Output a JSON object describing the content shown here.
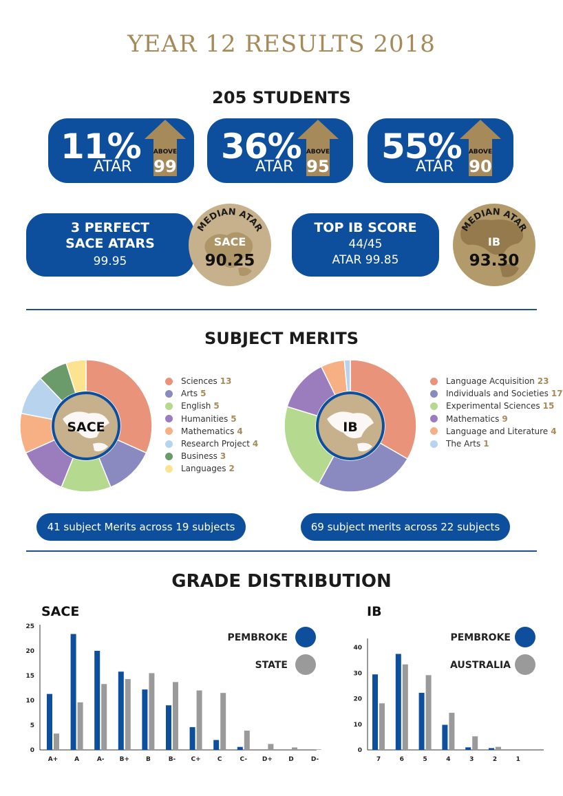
{
  "title": "YEAR 12 RESULTS 2018",
  "students_heading": "205 STUDENTS",
  "stats": [
    {
      "percent": "11%",
      "atar_label": "ATAR",
      "above_label": "ABOVE",
      "threshold": "99"
    },
    {
      "percent": "36%",
      "atar_label": "ATAR",
      "above_label": "ABOVE",
      "threshold": "95"
    },
    {
      "percent": "55%",
      "atar_label": "ATAR",
      "above_label": "ABOVE",
      "threshold": "90"
    }
  ],
  "sace_perfect": {
    "line1": "3 PERFECT",
    "line2": "SACE ATARS",
    "value": "99.95"
  },
  "median_sace": {
    "arc_label": "MEDIAN ATAR",
    "program": "SACE",
    "value": "90.25"
  },
  "top_ib": {
    "line1": "TOP IB SCORE",
    "line2": "44/45",
    "line3": "ATAR 99.85"
  },
  "median_ib": {
    "arc_label": "MEDIAN ATAR",
    "program": "IB",
    "value": "93.30"
  },
  "merits_heading": "SUBJECT MERITS",
  "grade_heading": "GRADE DISTRIBUTION",
  "colors": {
    "blue": "#0d4f9c",
    "gold": "#a68a5a",
    "grey": "#9a9a9a"
  },
  "chart_data": [
    {
      "type": "pie",
      "center_label": "SACE",
      "categories": [
        "Sciences",
        "Arts",
        "English",
        "Humanities",
        "Mathematics",
        "Research Project",
        "Business",
        "Languages"
      ],
      "values": [
        13,
        5,
        5,
        5,
        4,
        4,
        3,
        2
      ],
      "colors": [
        "#e8937a",
        "#8a89c0",
        "#b5d98f",
        "#9b7cbc",
        "#f6b083",
        "#b7d3ee",
        "#6b9a6b",
        "#fbe38f"
      ],
      "summary": "41 subject Merits across 19 subjects"
    },
    {
      "type": "pie",
      "center_label": "IB",
      "categories": [
        "Language Acquisition",
        "Individuals and Societies",
        "Experimental Sciences",
        "Mathematics",
        "Language and Literature",
        "The Arts"
      ],
      "values": [
        23,
        17,
        15,
        9,
        4,
        1
      ],
      "colors": [
        "#e8937a",
        "#8a89c0",
        "#b5d98f",
        "#9b7cbc",
        "#f6b083",
        "#b7d3ee"
      ],
      "summary": "69 subject merits across 22 subjects"
    },
    {
      "type": "bar",
      "title": "SACE",
      "categories": [
        "A+",
        "A",
        "A-",
        "B+",
        "B",
        "B-",
        "C+",
        "C",
        "C-",
        "D+",
        "D",
        "D-"
      ],
      "series": [
        {
          "name": "PEMBROKE",
          "color": "#0d4f9c",
          "values": [
            11.3,
            23.4,
            20.0,
            15.8,
            12.2,
            9.0,
            4.6,
            2.0,
            0.6,
            0,
            0,
            0
          ]
        },
        {
          "name": "STATE",
          "color": "#9a9a9a",
          "values": [
            3.3,
            9.6,
            13.3,
            14.3,
            15.5,
            13.7,
            12.0,
            11.5,
            3.9,
            1.2,
            0.5,
            0.1
          ]
        }
      ],
      "yticks": [
        0,
        5,
        10,
        15,
        20,
        25
      ],
      "ylim": [
        0,
        25
      ],
      "grid": false,
      "legend": "top-right"
    },
    {
      "type": "bar",
      "title": "IB",
      "categories": [
        "7",
        "6",
        "5",
        "4",
        "3",
        "2",
        "1"
      ],
      "series": [
        {
          "name": "PEMBROKE",
          "color": "#0d4f9c",
          "values": [
            29.5,
            37.5,
            22.3,
            9.8,
            1.0,
            0.7,
            0
          ]
        },
        {
          "name": "AUSTRALIA",
          "color": "#9a9a9a",
          "values": [
            18.2,
            33.4,
            29.2,
            14.5,
            5.3,
            1.2,
            0
          ]
        }
      ],
      "yticks": [
        0,
        10,
        20,
        30,
        40
      ],
      "ylim": [
        0,
        43
      ],
      "grid": false,
      "legend": "top-right"
    }
  ]
}
